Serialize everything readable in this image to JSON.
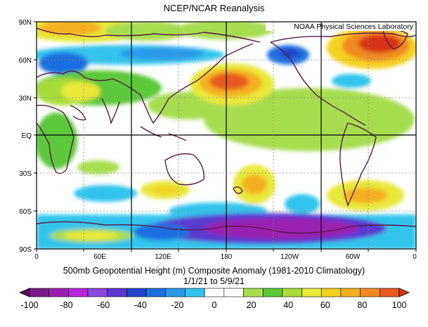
{
  "header": {
    "title": "NCEP/NCAR Reanalysis",
    "credit": "NOAA Physical Sciences Laboratory"
  },
  "map": {
    "lat_labels": [
      "90N",
      "60N",
      "30N",
      "EQ",
      "30S",
      "60S",
      "90S"
    ],
    "lon_labels": [
      "0",
      "60E",
      "120E",
      "180",
      "120W",
      "60W",
      "0"
    ]
  },
  "caption": {
    "line1": "500mb Geopotential Height (m) Composite Anomaly (1981-2010 Climatology)",
    "line2": "1/1/21  to 5/9/21"
  },
  "colorbar": {
    "tick_labels": [
      "-100",
      "-80",
      "-60",
      "-40",
      "-20",
      "0",
      "20",
      "40",
      "60",
      "80",
      "100"
    ],
    "colors": [
      "#5a0a5a",
      "#7a1a8a",
      "#9a20b0",
      "#b628d8",
      "#8a48e0",
      "#5a3ad0",
      "#2244c8",
      "#1e6ee0",
      "#2a9ae8",
      "#30c4ec",
      "#ffffff",
      "#ffffff",
      "#a8dc50",
      "#5cc83a",
      "#a8dc3a",
      "#e8e83a",
      "#f4d020",
      "#f4b020",
      "#f08a20",
      "#e85a1e",
      "#d83018"
    ]
  }
}
